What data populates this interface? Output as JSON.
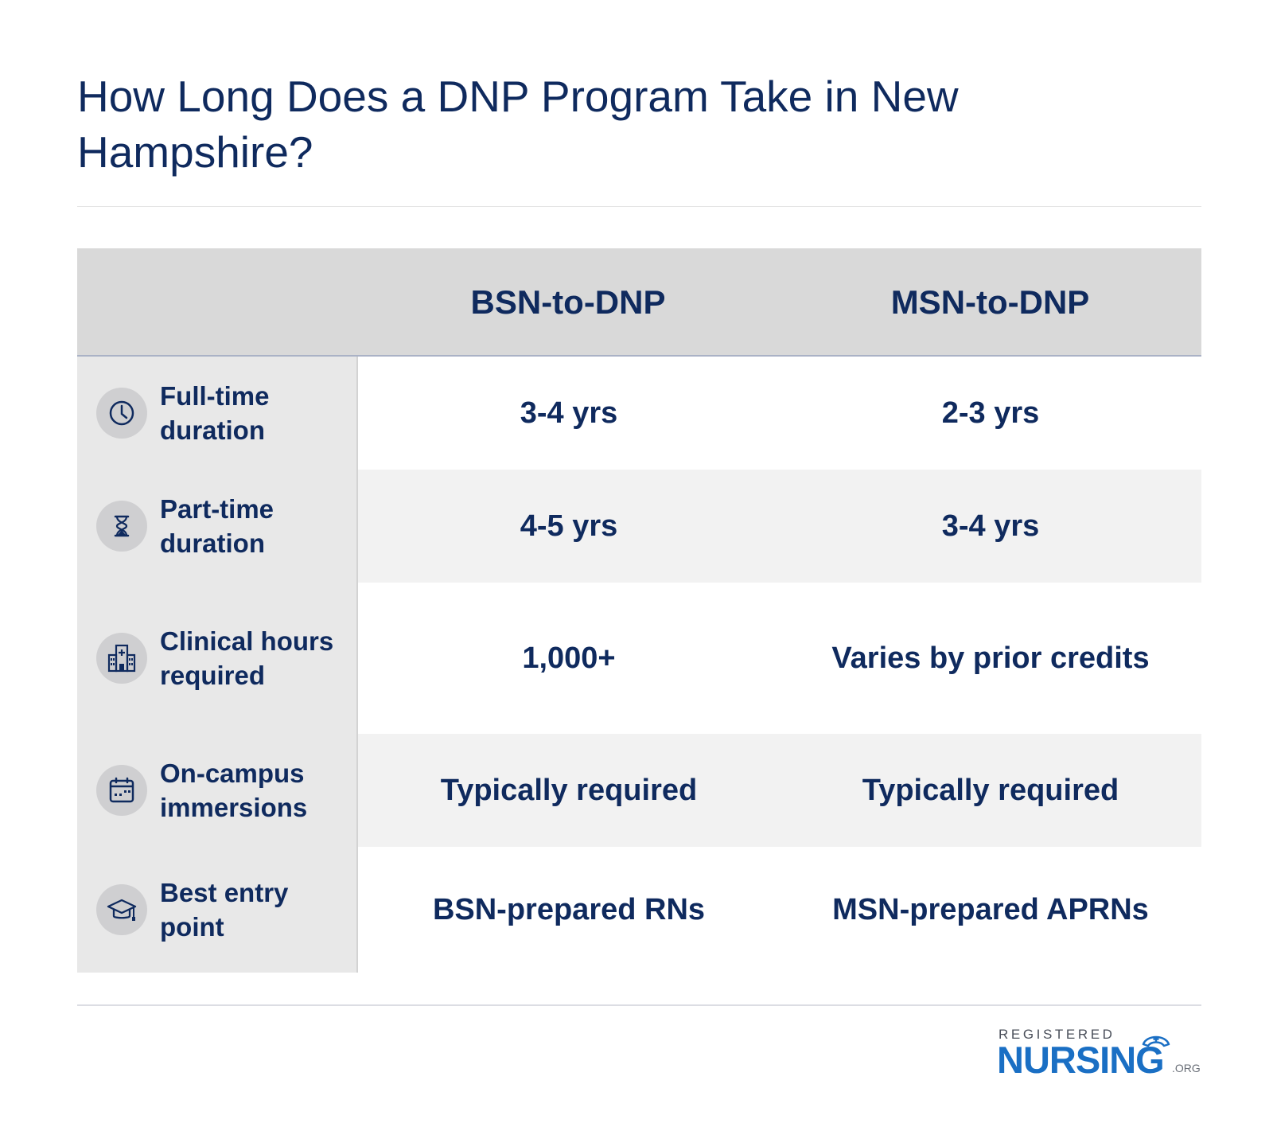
{
  "title": "How Long Does a DNP Program Take in New Hampshire?",
  "table": {
    "headers": [
      "",
      "BSN-to-DNP",
      "MSN-to-DNP"
    ],
    "rows": [
      {
        "icon": "clock-icon",
        "label": "Full-time duration",
        "bsn": "3-4 yrs",
        "msn": "2-3 yrs"
      },
      {
        "icon": "hourglass-icon",
        "label": "Part-time duration",
        "bsn": "4-5 yrs",
        "msn": "3-4 yrs"
      },
      {
        "icon": "hospital-icon",
        "label": "Clinical hours required",
        "bsn": "1,000+",
        "msn": "Varies by prior credits"
      },
      {
        "icon": "calendar-icon",
        "label": "On-campus immersions",
        "bsn": "Typically required",
        "msn": "Typically required"
      },
      {
        "icon": "graduation-cap-icon",
        "label": "Best entry point",
        "bsn": "BSN-prepared RNs",
        "msn": "MSN-prepared APRNs"
      }
    ]
  },
  "logo": {
    "top": "REGISTERED",
    "main": "NURSING",
    "suffix": ".ORG"
  },
  "colors": {
    "navy": "#0f2a5e",
    "header_bg": "#d9d9d9",
    "label_bg": "#e8e8e8",
    "shade_bg": "#f2f2f2",
    "logo_blue": "#1a6fc4"
  }
}
